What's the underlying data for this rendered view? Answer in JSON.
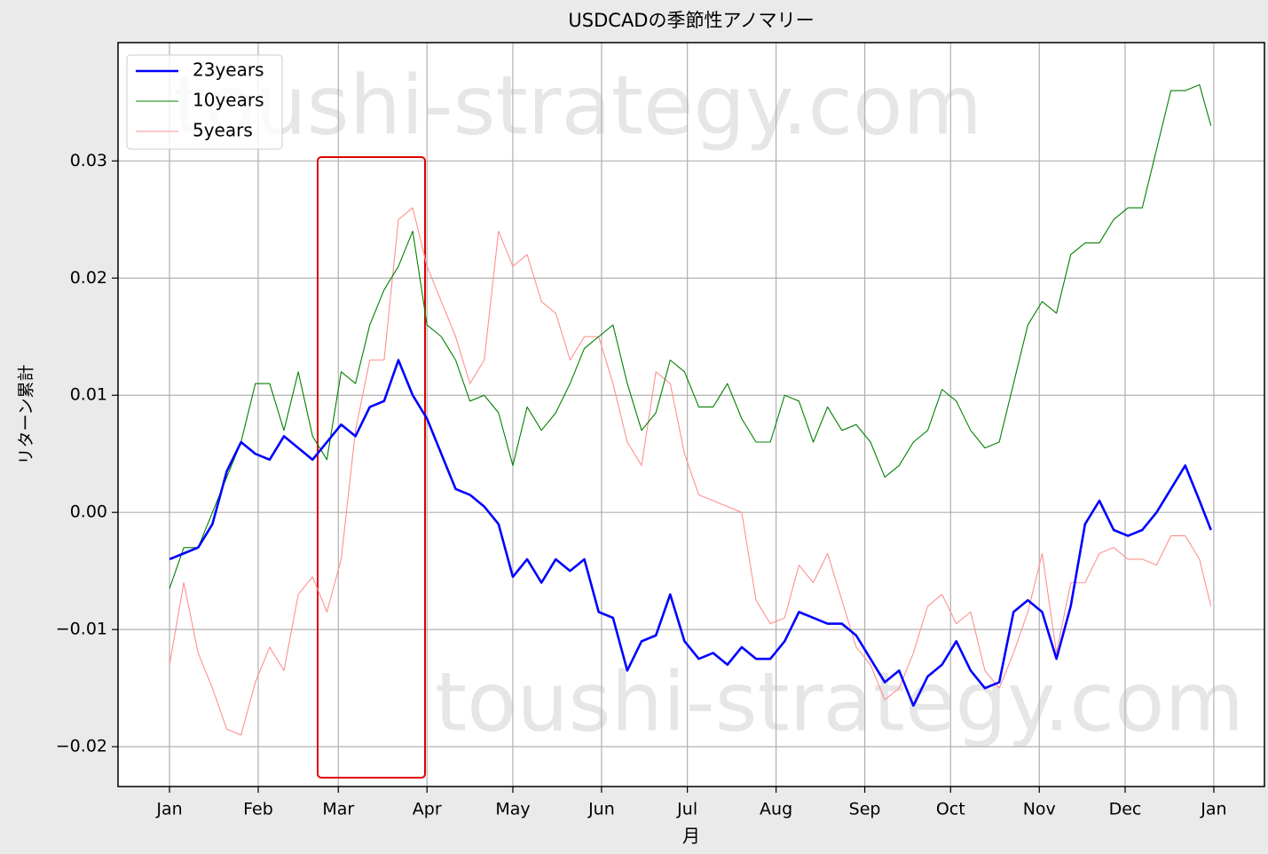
{
  "chart_data": {
    "type": "line",
    "title": "USDCADの季節性アノマリー",
    "xlabel": "月",
    "ylabel": "リターン累計",
    "watermarks": [
      "toushi-strategy.com",
      "toushi-strategy.com"
    ],
    "x": [
      0,
      5,
      10,
      15,
      20,
      25,
      30,
      35,
      40,
      45,
      50,
      55,
      60,
      65,
      70,
      75,
      80,
      85,
      90,
      95,
      100,
      105,
      110,
      115,
      120,
      125,
      130,
      135,
      140,
      145,
      150,
      155,
      160,
      165,
      170,
      175,
      180,
      185,
      190,
      195,
      200,
      205,
      210,
      215,
      220,
      225,
      230,
      235,
      240,
      245,
      250,
      255,
      260,
      265,
      270,
      275,
      280,
      285,
      290,
      295,
      300,
      305,
      310,
      315,
      320,
      325,
      330,
      335,
      340,
      345,
      350,
      355,
      360,
      364
    ],
    "series": [
      {
        "name": "23years",
        "color": "#0000ff",
        "values": [
          -0.004,
          -0.0035,
          -0.003,
          -0.001,
          0.0035,
          0.006,
          0.005,
          0.0045,
          0.0065,
          0.0055,
          0.0045,
          0.006,
          0.0075,
          0.0065,
          0.009,
          0.0095,
          0.013,
          0.01,
          0.008,
          0.005,
          0.002,
          0.0015,
          0.0005,
          -0.001,
          -0.0055,
          -0.004,
          -0.006,
          -0.004,
          -0.005,
          -0.004,
          -0.0085,
          -0.009,
          -0.0135,
          -0.011,
          -0.0105,
          -0.007,
          -0.011,
          -0.0125,
          -0.012,
          -0.013,
          -0.0115,
          -0.0125,
          -0.0125,
          -0.011,
          -0.0085,
          -0.009,
          -0.0095,
          -0.0095,
          -0.0105,
          -0.0125,
          -0.0145,
          -0.0135,
          -0.0165,
          -0.014,
          -0.013,
          -0.011,
          -0.0135,
          -0.015,
          -0.0145,
          -0.0085,
          -0.0075,
          -0.0085,
          -0.0125,
          -0.008,
          -0.001,
          0.001,
          -0.0015,
          -0.002,
          -0.0015,
          0.0,
          0.002,
          0.004,
          0.001,
          -0.0015
        ]
      },
      {
        "name": "10years",
        "color": "#008000",
        "values": [
          -0.0065,
          -0.003,
          -0.003,
          0.0,
          0.003,
          0.006,
          0.011,
          0.011,
          0.007,
          0.012,
          0.0065,
          0.0045,
          0.012,
          0.011,
          0.016,
          0.019,
          0.021,
          0.024,
          0.016,
          0.015,
          0.013,
          0.0095,
          0.01,
          0.0085,
          0.004,
          0.009,
          0.007,
          0.0085,
          0.011,
          0.014,
          0.015,
          0.016,
          0.011,
          0.007,
          0.0085,
          0.013,
          0.012,
          0.009,
          0.009,
          0.011,
          0.008,
          0.006,
          0.006,
          0.01,
          0.0095,
          0.006,
          0.009,
          0.007,
          0.0075,
          0.006,
          0.003,
          0.004,
          0.006,
          0.007,
          0.0105,
          0.0095,
          0.007,
          0.0055,
          0.006,
          0.011,
          0.016,
          0.018,
          0.017,
          0.022,
          0.023,
          0.023,
          0.025,
          0.026,
          0.026,
          0.031,
          0.036,
          0.036,
          0.0365,
          0.033
        ]
      },
      {
        "name": "5years",
        "color": "#ff9090",
        "values": [
          -0.013,
          -0.006,
          -0.012,
          -0.015,
          -0.0185,
          -0.019,
          -0.0145,
          -0.0115,
          -0.0135,
          -0.007,
          -0.0055,
          -0.0085,
          -0.004,
          0.007,
          0.013,
          0.013,
          0.025,
          0.026,
          0.021,
          0.018,
          0.015,
          0.011,
          0.013,
          0.024,
          0.021,
          0.022,
          0.018,
          0.017,
          0.013,
          0.015,
          0.015,
          0.011,
          0.006,
          0.004,
          0.012,
          0.011,
          0.005,
          0.0015,
          0.001,
          0.0005,
          0.0,
          -0.0075,
          -0.0095,
          -0.009,
          -0.0045,
          -0.006,
          -0.0035,
          -0.0075,
          -0.0115,
          -0.013,
          -0.016,
          -0.015,
          -0.012,
          -0.008,
          -0.007,
          -0.0095,
          -0.0085,
          -0.0135,
          -0.015,
          -0.012,
          -0.0085,
          -0.0035,
          -0.012,
          -0.006,
          -0.006,
          -0.0035,
          -0.003,
          -0.004,
          -0.004,
          -0.0045,
          -0.002,
          -0.002,
          -0.004,
          -0.008
        ]
      }
    ],
    "xlim": [
      -18,
      382.7
    ],
    "xticks": [
      {
        "value": 0,
        "label": "Jan"
      },
      {
        "value": 31,
        "label": "Feb"
      },
      {
        "value": 59,
        "label": "Mar"
      },
      {
        "value": 90,
        "label": "Apr"
      },
      {
        "value": 120,
        "label": "May"
      },
      {
        "value": 151,
        "label": "Jun"
      },
      {
        "value": 181,
        "label": "Jul"
      },
      {
        "value": 212,
        "label": "Aug"
      },
      {
        "value": 243,
        "label": "Sep"
      },
      {
        "value": 273,
        "label": "Oct"
      },
      {
        "value": 304,
        "label": "Nov"
      },
      {
        "value": 334,
        "label": "Dec"
      },
      {
        "value": 365,
        "label": "Jan"
      }
    ],
    "ylim": [
      -0.0234,
      0.0401
    ],
    "yticks": [
      {
        "value": -0.02,
        "label": "−0.02"
      },
      {
        "value": -0.01,
        "label": "−0.01"
      },
      {
        "value": 0,
        "label": "0.00"
      },
      0.01,
      0.02,
      0.03
    ],
    "grid": true,
    "legend": "upper left"
  }
}
